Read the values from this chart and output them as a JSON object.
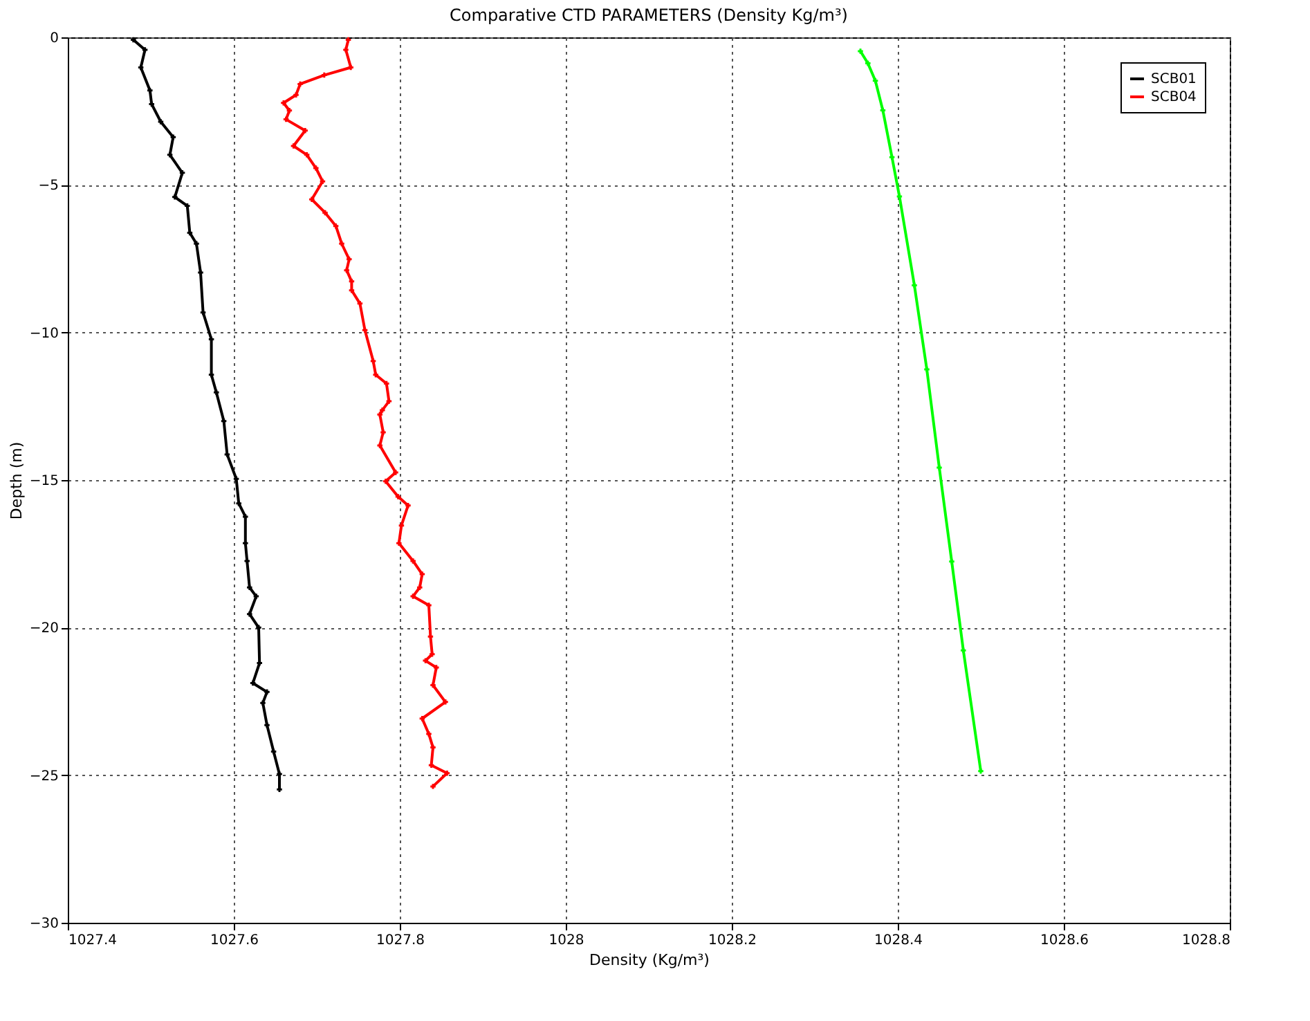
{
  "chart_data": {
    "type": "line",
    "title": "Comparative CTD PARAMETERS (Density Kg/m³)",
    "xlabel": "Density (Kg/m³)",
    "ylabel": "Depth (m)",
    "xlim": [
      1027.4,
      1028.8
    ],
    "xticks": [
      1027.4,
      1027.6,
      1027.8,
      1028,
      1028.2,
      1028.4,
      1028.6,
      1028.8
    ],
    "ylim": [
      -30,
      0
    ],
    "yticks": [
      -30,
      -25,
      -20,
      -15,
      -10,
      -5,
      0
    ],
    "grid": true,
    "legend": "top right",
    "marker": "cross",
    "line_style": "solid",
    "series": [
      {
        "name": "SCB01",
        "color": "#000000",
        "x": [
          1027.479,
          1027.493,
          1027.488,
          1027.499,
          1027.501,
          1027.512,
          1027.527,
          1027.523,
          1027.538,
          1027.529,
          1027.544,
          1027.547,
          1027.555,
          1027.56,
          1027.563,
          1027.573,
          1027.573,
          1027.579,
          1027.588,
          1027.592,
          1027.603,
          1027.606,
          1027.614,
          1027.614,
          1027.616,
          1027.619,
          1027.627,
          1027.619,
          1027.63,
          1027.631,
          1027.623,
          1027.64,
          1027.635,
          1027.64,
          1027.648,
          1027.655,
          1027.655
        ],
        "values": [
          -0.08,
          -0.42,
          -1.02,
          -1.8,
          -2.26,
          -2.86,
          -3.38,
          -3.98,
          -4.59,
          -5.41,
          -5.71,
          -6.62,
          -6.99,
          -7.97,
          -9.32,
          -10.23,
          -11.43,
          -12.03,
          -13.0,
          -14.13,
          -14.96,
          -15.79,
          -16.24,
          -17.14,
          -17.74,
          -18.64,
          -18.94,
          -19.54,
          -20.0,
          -21.2,
          -21.88,
          -22.18,
          -22.55,
          -23.3,
          -24.2,
          -24.96,
          -25.48
        ]
      },
      {
        "name": "SCB04",
        "color": "#ff0000",
        "x": [
          1027.738,
          1027.735,
          1027.741,
          1027.709,
          1027.68,
          1027.675,
          1027.66,
          1027.667,
          1027.663,
          1027.686,
          1027.672,
          1027.688,
          1027.699,
          1027.707,
          1027.694,
          1027.71,
          1027.723,
          1027.73,
          1027.739,
          1027.736,
          1027.742,
          1027.742,
          1027.752,
          1027.758,
          1027.768,
          1027.771,
          1027.784,
          1027.787,
          1027.779,
          1027.776,
          1027.78,
          1027.776,
          1027.795,
          1027.783,
          1027.798,
          1027.81,
          1027.802,
          1027.799,
          1027.816,
          1027.827,
          1027.824,
          1027.816,
          1027.835,
          1027.837,
          1027.839,
          1027.831,
          1027.844,
          1027.84,
          1027.855,
          1027.827,
          1027.835,
          1027.84,
          1027.838,
          1027.857,
          1027.84
        ],
        "values": [
          -0.08,
          -0.42,
          -1.02,
          -1.28,
          -1.58,
          -1.95,
          -2.22,
          -2.48,
          -2.78,
          -3.16,
          -3.68,
          -3.98,
          -4.43,
          -4.88,
          -5.49,
          -5.94,
          -6.39,
          -6.99,
          -7.52,
          -7.89,
          -8.27,
          -8.57,
          -9.02,
          -9.92,
          -10.97,
          -11.43,
          -11.73,
          -12.33,
          -12.63,
          -12.78,
          -13.38,
          -13.83,
          -14.74,
          -15.04,
          -15.56,
          -15.86,
          -16.54,
          -17.14,
          -17.74,
          -18.19,
          -18.64,
          -18.94,
          -19.24,
          -20.3,
          -20.9,
          -21.12,
          -21.35,
          -21.95,
          -22.52,
          -23.08,
          -23.6,
          -24.06,
          -24.66,
          -24.93,
          -25.38
        ]
      },
      {
        "color": "#00ff00",
        "x": [
          1028.355,
          1028.364,
          1028.373,
          1028.382,
          1028.393,
          1028.402,
          1028.42,
          1028.435,
          1028.45,
          1028.465,
          1028.479,
          1028.5
        ],
        "values": [
          -0.47,
          -0.88,
          -1.47,
          -2.47,
          -4.06,
          -5.39,
          -8.4,
          -11.25,
          -14.58,
          -17.76,
          -20.77,
          -24.86
        ]
      }
    ]
  }
}
